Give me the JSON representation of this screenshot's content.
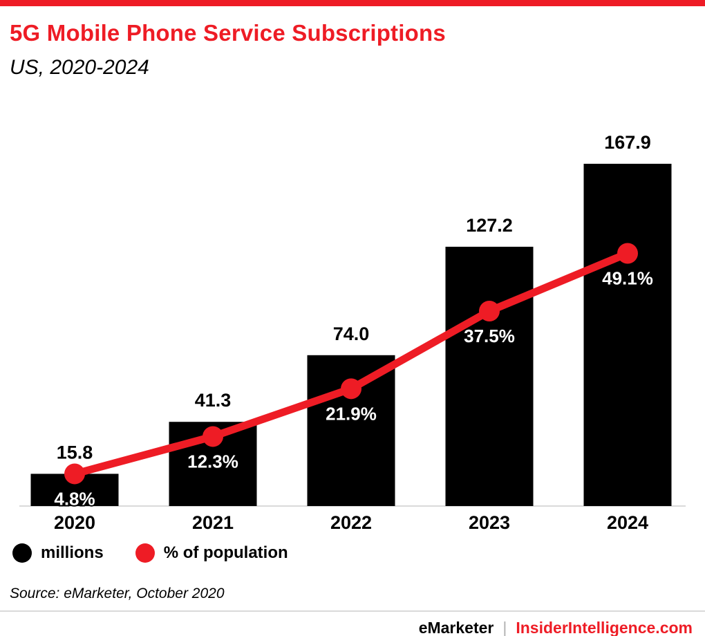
{
  "header": {
    "title": "5G Mobile Phone Service Subscriptions",
    "subtitle": "US, 2020-2024"
  },
  "chart_data": {
    "type": "bar",
    "title": "5G Mobile Phone Service Subscriptions",
    "subtitle": "US, 2020-2024",
    "categories": [
      "2020",
      "2021",
      "2022",
      "2023",
      "2024"
    ],
    "series": [
      {
        "name": "millions",
        "kind": "bar",
        "color": "#000000",
        "values": [
          15.8,
          41.3,
          74.0,
          127.2,
          167.9
        ],
        "labels": [
          "15.8",
          "41.3",
          "74.0",
          "127.2",
          "167.9"
        ]
      },
      {
        "name": "% of population",
        "kind": "line",
        "color": "#ee1c25",
        "values": [
          4.8,
          12.3,
          21.9,
          37.5,
          49.1
        ],
        "labels": [
          "4.8%",
          "12.3%",
          "21.9%",
          "37.5%",
          "49.1%"
        ]
      }
    ],
    "ylim_millions": [
      0,
      195
    ],
    "ylim_percent": [
      0,
      78
    ],
    "grid": false,
    "legend_position": "bottom",
    "xlabel": "",
    "ylabel": ""
  },
  "legend": {
    "items": [
      {
        "label": "millions",
        "color": "#000000"
      },
      {
        "label": "% of population",
        "color": "#ee1c25"
      }
    ]
  },
  "footer": {
    "source": "Source: eMarketer, October 2020",
    "brand_left": "eMarketer",
    "brand_divider": "|",
    "brand_right": "InsiderIntelligence.com"
  },
  "colors": {
    "accent_red": "#ee1c25",
    "bar_black": "#000000",
    "axis_gray": "#d9d9d9"
  }
}
